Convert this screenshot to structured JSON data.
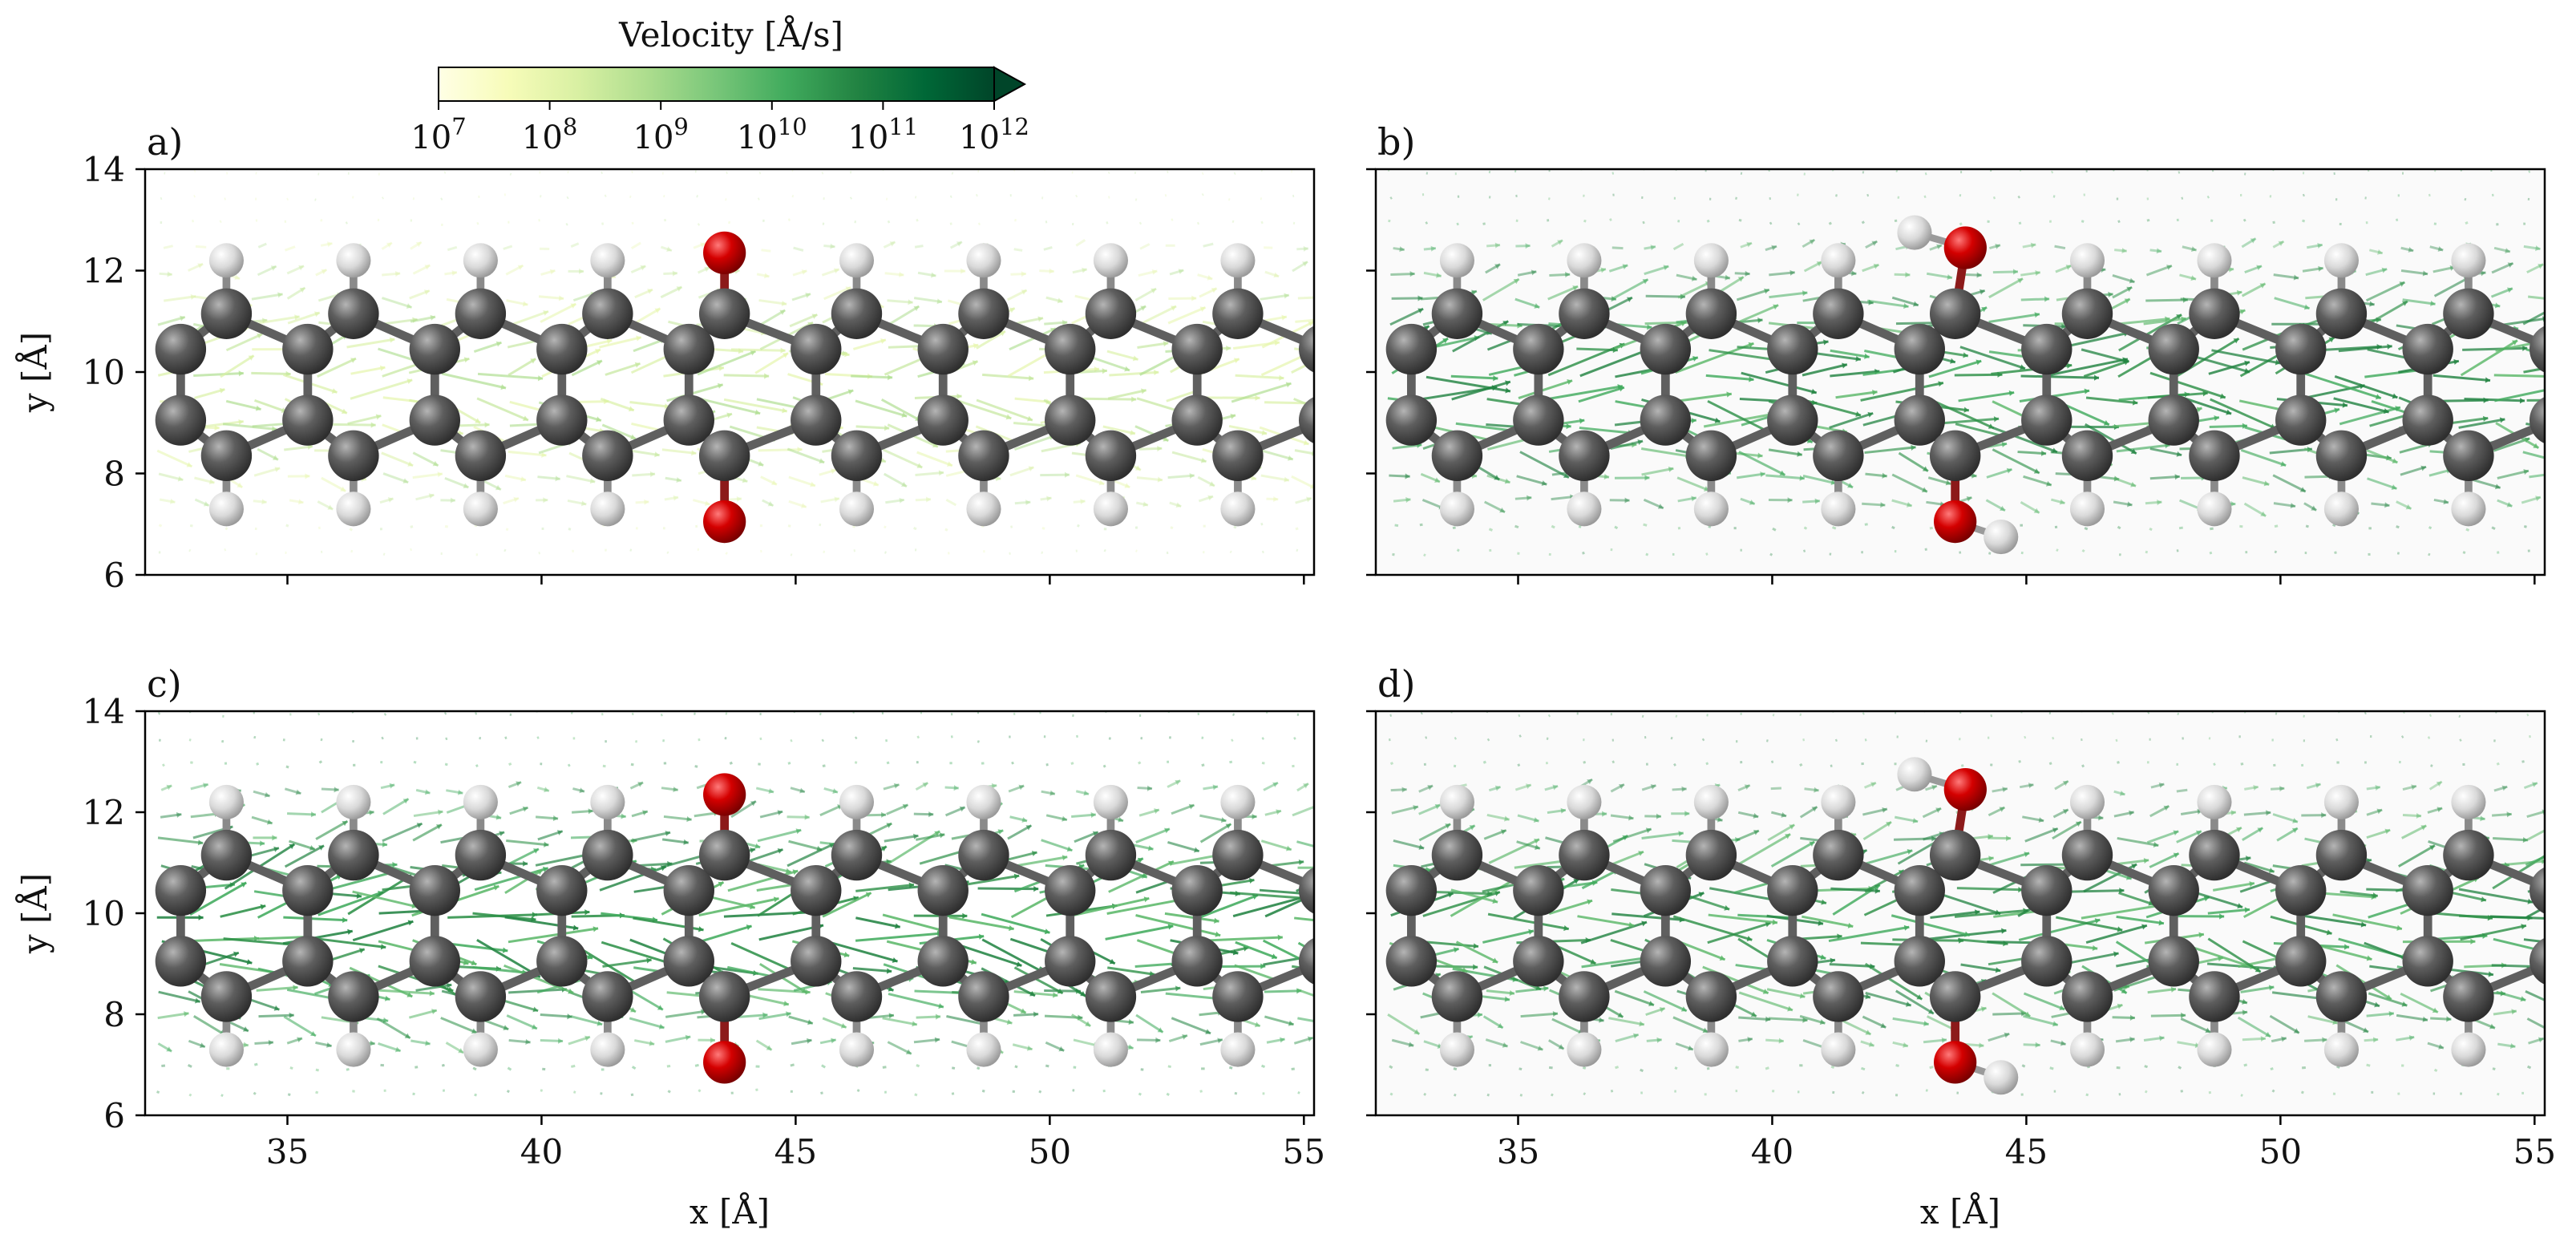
{
  "colorbar": {
    "label": "Velocity [Å/s]",
    "scale": "log",
    "extend": "max",
    "range_exponents": [
      7,
      12
    ],
    "tick_base": "10",
    "tick_exponents": [
      "7",
      "8",
      "9",
      "10",
      "11",
      "12"
    ],
    "colormap_stops": [
      "#ffffe5",
      "#f7fcb9",
      "#d9f0a3",
      "#addd8e",
      "#78c679",
      "#41ab5d",
      "#238443",
      "#006837",
      "#004529"
    ]
  },
  "colors": {
    "carbon": "#5a5a5a",
    "hydrogen": "#d4d4d4",
    "oxygen": "#cc0000",
    "bond": "#707070",
    "frame": "#000000"
  },
  "chart_data": [
    {
      "id": "a",
      "panel_label": "a)",
      "type": "scatter",
      "xlim": [
        32.2,
        55.2
      ],
      "ylim": [
        6,
        14
      ],
      "xticks": [
        "35",
        "40",
        "45",
        "50",
        "55"
      ],
      "xtick_values": [
        35,
        40,
        45,
        50,
        55
      ],
      "yticks": [
        "6",
        "8",
        "10",
        "12",
        "14"
      ],
      "ytick_values": [
        6,
        8,
        10,
        12,
        14
      ],
      "xlabel": "",
      "ylabel": "y [Å]",
      "show_xticklabels": false,
      "show_yticklabels": true,
      "background": "#ffffff",
      "field_strength": 0.35,
      "hydroxyl": false,
      "oxygen_atoms": [
        {
          "x": 43.6,
          "y": 12.35
        },
        {
          "x": 43.6,
          "y": 7.05
        }
      ]
    },
    {
      "id": "b",
      "panel_label": "b)",
      "type": "scatter",
      "xlim": [
        32.2,
        55.2
      ],
      "ylim": [
        6,
        14
      ],
      "xticks": [
        "35",
        "40",
        "45",
        "50",
        "55"
      ],
      "xtick_values": [
        35,
        40,
        45,
        50,
        55
      ],
      "yticks": [
        "6",
        "8",
        "10",
        "12",
        "14"
      ],
      "ytick_values": [
        6,
        8,
        10,
        12,
        14
      ],
      "xlabel": "",
      "ylabel": "",
      "show_xticklabels": false,
      "show_yticklabels": false,
      "background": "#fafafa",
      "field_strength": 0.62,
      "hydroxyl": true,
      "oxygen_atoms": [
        {
          "x": 43.8,
          "y": 12.45
        },
        {
          "x": 43.6,
          "y": 7.05
        }
      ],
      "hydroxyl_h": [
        {
          "x": 42.8,
          "y": 12.75
        },
        {
          "x": 44.5,
          "y": 6.75
        }
      ]
    },
    {
      "id": "c",
      "panel_label": "c)",
      "type": "scatter",
      "xlim": [
        32.2,
        55.2
      ],
      "ylim": [
        6,
        14
      ],
      "xticks": [
        "35",
        "40",
        "45",
        "50",
        "55"
      ],
      "xtick_values": [
        35,
        40,
        45,
        50,
        55
      ],
      "yticks": [
        "6",
        "8",
        "10",
        "12",
        "14"
      ],
      "ytick_values": [
        6,
        8,
        10,
        12,
        14
      ],
      "xlabel": "x [Å]",
      "ylabel": "y [Å]",
      "show_xticklabels": true,
      "show_yticklabels": true,
      "background": "#ffffff",
      "field_strength": 0.72,
      "hydroxyl": false,
      "oxygen_atoms": [
        {
          "x": 43.6,
          "y": 12.35
        },
        {
          "x": 43.6,
          "y": 7.05
        }
      ]
    },
    {
      "id": "d",
      "panel_label": "d)",
      "type": "scatter",
      "xlim": [
        32.2,
        55.2
      ],
      "ylim": [
        6,
        14
      ],
      "xticks": [
        "35",
        "40",
        "45",
        "50",
        "55"
      ],
      "xtick_values": [
        35,
        40,
        45,
        50,
        55
      ],
      "yticks": [
        "6",
        "8",
        "10",
        "12",
        "14"
      ],
      "ytick_values": [
        6,
        8,
        10,
        12,
        14
      ],
      "xlabel": "x [Å]",
      "ylabel": "",
      "show_xticklabels": true,
      "show_yticklabels": false,
      "background": "#fafafa",
      "field_strength": 0.62,
      "hydroxyl": true,
      "oxygen_atoms": [
        {
          "x": 43.8,
          "y": 12.45
        },
        {
          "x": 43.6,
          "y": 7.05
        }
      ],
      "hydroxyl_h": [
        {
          "x": 42.8,
          "y": 12.75
        },
        {
          "x": 44.5,
          "y": 6.75
        }
      ]
    }
  ]
}
